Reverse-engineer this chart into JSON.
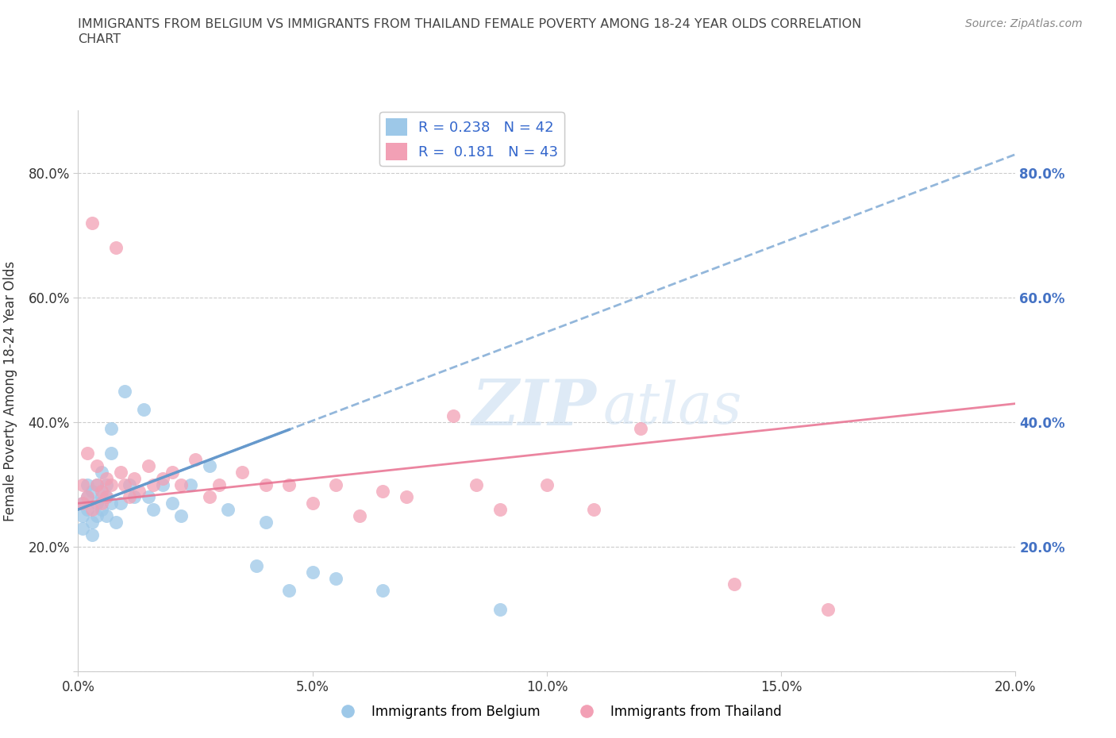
{
  "title_line1": "IMMIGRANTS FROM BELGIUM VS IMMIGRANTS FROM THAILAND FEMALE POVERTY AMONG 18-24 YEAR OLDS CORRELATION",
  "title_line2": "CHART",
  "source": "Source: ZipAtlas.com",
  "ylabel": "Female Poverty Among 18-24 Year Olds",
  "xlabel": "",
  "xlim": [
    0.0,
    0.2
  ],
  "ylim": [
    0.0,
    0.9
  ],
  "xticks": [
    0.0,
    0.05,
    0.1,
    0.15,
    0.2
  ],
  "yticks": [
    0.0,
    0.2,
    0.4,
    0.6,
    0.8
  ],
  "xtick_labels": [
    "0.0%",
    "5.0%",
    "10.0%",
    "15.0%",
    "20.0%"
  ],
  "ytick_labels": [
    "",
    "20.0%",
    "40.0%",
    "60.0%",
    "80.0%"
  ],
  "right_ytick_labels": [
    "20.0%",
    "40.0%",
    "60.0%",
    "80.0%"
  ],
  "R_belgium": 0.238,
  "N_belgium": 42,
  "R_thailand": 0.181,
  "N_thailand": 43,
  "color_belgium": "#9DC8E8",
  "color_thailand": "#F2A0B5",
  "trendline_belgium_color": "#6699CC",
  "trendline_thailand_color": "#E87090",
  "watermark_zip": "ZIP",
  "watermark_atlas": "atlas",
  "belgium_x": [
    0.001,
    0.001,
    0.001,
    0.002,
    0.002,
    0.002,
    0.003,
    0.003,
    0.003,
    0.004,
    0.004,
    0.004,
    0.005,
    0.005,
    0.005,
    0.006,
    0.006,
    0.006,
    0.007,
    0.007,
    0.007,
    0.008,
    0.009,
    0.01,
    0.011,
    0.012,
    0.014,
    0.015,
    0.016,
    0.018,
    0.02,
    0.022,
    0.024,
    0.028,
    0.032,
    0.038,
    0.04,
    0.045,
    0.05,
    0.055,
    0.065,
    0.09
  ],
  "belgium_y": [
    0.25,
    0.27,
    0.23,
    0.28,
    0.3,
    0.26,
    0.22,
    0.29,
    0.24,
    0.27,
    0.25,
    0.3,
    0.26,
    0.32,
    0.28,
    0.3,
    0.25,
    0.28,
    0.27,
    0.35,
    0.39,
    0.24,
    0.27,
    0.45,
    0.3,
    0.28,
    0.42,
    0.28,
    0.26,
    0.3,
    0.27,
    0.25,
    0.3,
    0.33,
    0.26,
    0.17,
    0.24,
    0.13,
    0.16,
    0.15,
    0.13,
    0.1
  ],
  "thailand_x": [
    0.001,
    0.001,
    0.002,
    0.002,
    0.003,
    0.003,
    0.004,
    0.004,
    0.005,
    0.005,
    0.006,
    0.006,
    0.007,
    0.008,
    0.009,
    0.01,
    0.011,
    0.012,
    0.013,
    0.015,
    0.016,
    0.018,
    0.02,
    0.022,
    0.025,
    0.028,
    0.03,
    0.035,
    0.04,
    0.045,
    0.05,
    0.055,
    0.06,
    0.065,
    0.07,
    0.08,
    0.085,
    0.09,
    0.1,
    0.11,
    0.12,
    0.14,
    0.16
  ],
  "thailand_y": [
    0.3,
    0.27,
    0.35,
    0.28,
    0.72,
    0.26,
    0.3,
    0.33,
    0.29,
    0.27,
    0.31,
    0.28,
    0.3,
    0.68,
    0.32,
    0.3,
    0.28,
    0.31,
    0.29,
    0.33,
    0.3,
    0.31,
    0.32,
    0.3,
    0.34,
    0.28,
    0.3,
    0.32,
    0.3,
    0.3,
    0.27,
    0.3,
    0.25,
    0.29,
    0.28,
    0.41,
    0.3,
    0.26,
    0.3,
    0.26,
    0.39,
    0.14,
    0.1
  ]
}
